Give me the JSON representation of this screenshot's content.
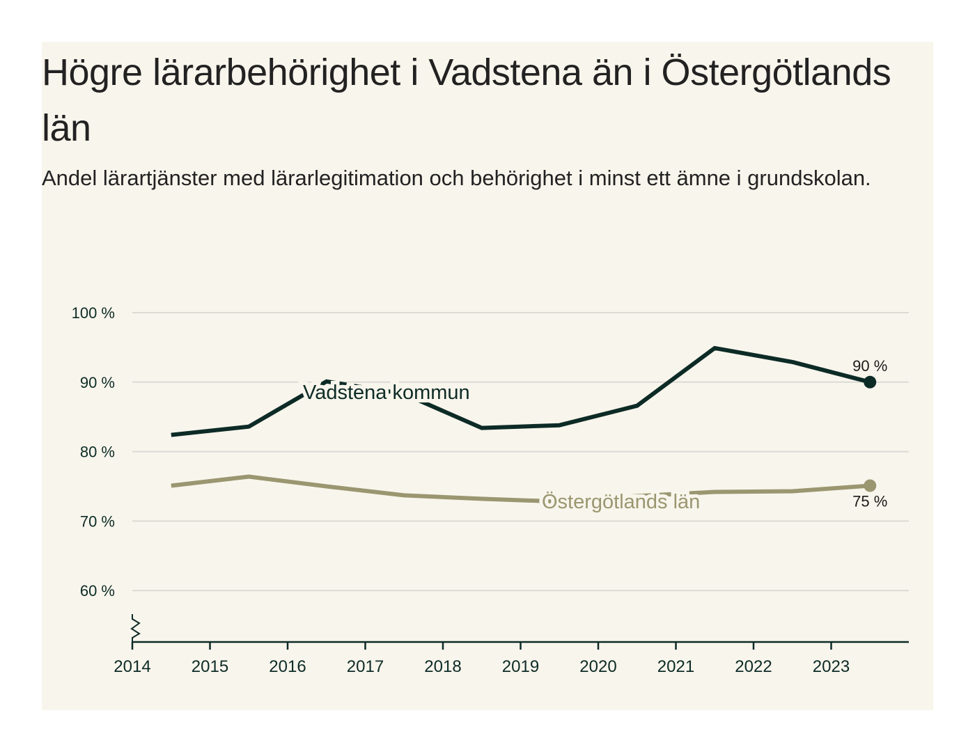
{
  "header": {
    "title": "Högre lärarbehörighet i Vadstena än i Östergötlands län",
    "subtitle": "Andel lärartjänster med lärarlegitimation och behörighet i minst ett ämne i grundskolan."
  },
  "chart_data": {
    "type": "line",
    "title": "Högre lärarbehörighet i Vadstena än i Östergötlands län",
    "subtitle": "Andel lärartjänster med lärarlegitimation och behörighet i minst ett ämne i grundskolan.",
    "xlabel": "",
    "ylabel": "",
    "x_ticks": [
      2014,
      2015,
      2016,
      2017,
      2018,
      2019,
      2020,
      2021,
      2022,
      2023
    ],
    "x_tick_labels": [
      "2014",
      "2015",
      "2016",
      "2017",
      "2018",
      "2019",
      "2020",
      "2021",
      "2022",
      "2023"
    ],
    "xlim": [
      2014,
      2024
    ],
    "y_ticks": [
      60,
      70,
      80,
      90,
      100
    ],
    "y_tick_labels": [
      "60 %",
      "70 %",
      "80 %",
      "90 %",
      "100 %"
    ],
    "ylim": [
      52.6,
      100
    ],
    "y_axis_break": true,
    "grid": "horizontal",
    "x": [
      2014.5,
      2015.5,
      2016.5,
      2017.5,
      2018.5,
      2019.5,
      2020.5,
      2021.5,
      2022.5,
      2023.5
    ],
    "series": [
      {
        "name": "Vadstena kommun",
        "color": "#0d2b26",
        "values": [
          82.4,
          83.6,
          90.1,
          88.3,
          83.4,
          83.8,
          86.6,
          94.9,
          92.9,
          90.0
        ],
        "end_label": "90 %"
      },
      {
        "name": "Östergötlands län",
        "color": "#9a9670",
        "values": [
          75.1,
          76.4,
          75.0,
          73.7,
          73.2,
          72.8,
          73.6,
          74.2,
          74.3,
          75.1
        ],
        "end_label": "75 %"
      }
    ],
    "legend": "inline-labels"
  },
  "colors": {
    "background": "#f8f5ec",
    "text": "#222222",
    "axis": "#0d2b26",
    "grid": "#dcdad4"
  }
}
